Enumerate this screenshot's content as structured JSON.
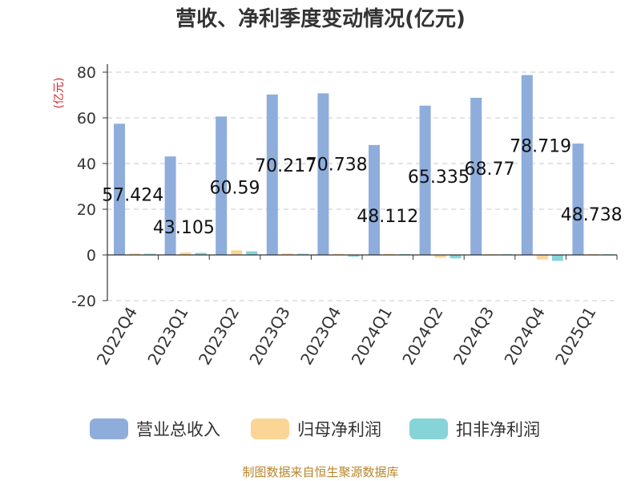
{
  "chart_data": {
    "type": "bar",
    "title": "营收、净利季度变动情况(亿元)",
    "ylabel": "(亿元)",
    "ylim": [
      -20,
      80
    ],
    "yticks": [
      -20,
      0,
      20,
      40,
      60,
      80
    ],
    "grid": true,
    "legend_position": "bottom",
    "categories": [
      "2022Q4",
      "2023Q1",
      "2023Q2",
      "2023Q3",
      "2023Q4",
      "2024Q1",
      "2024Q2",
      "2024Q3",
      "2024Q4",
      "2025Q1"
    ],
    "series": [
      {
        "name": "营业总收入",
        "color": "#8eaddb",
        "values": [
          57.424,
          43.105,
          60.59,
          70.217,
          70.738,
          48.112,
          65.335,
          68.77,
          78.719,
          48.738
        ],
        "labels": [
          "57.424",
          "43.105",
          "60.59",
          "70.217",
          "70.738",
          "48.112",
          "65.335",
          "68.77",
          "78.719",
          "48.738"
        ]
      },
      {
        "name": "归母净利润",
        "color": "#fbd596",
        "values": [
          0.6,
          1.1,
          2.0,
          0.6,
          0.5,
          0.5,
          -1.2,
          0.4,
          -2.0,
          0.4
        ]
      },
      {
        "name": "扣非净利润",
        "color": "#86d3d8",
        "values": [
          0.5,
          0.9,
          1.6,
          0.5,
          -0.8,
          0.4,
          -1.5,
          0.3,
          -2.6,
          0.3
        ]
      }
    ],
    "source": "制图数据来自恒生聚源数据库"
  }
}
